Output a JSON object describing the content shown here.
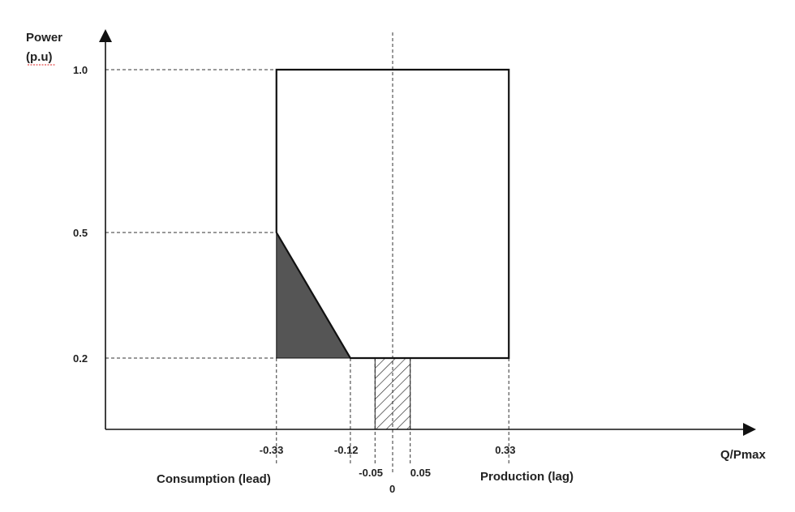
{
  "y_axis": {
    "title_line1": "Power",
    "title_line2": "(p.u)",
    "ticks": [
      {
        "value": 1.0,
        "label": "1.0"
      },
      {
        "value": 0.5,
        "label": "0.5"
      },
      {
        "value": 0.2,
        "label": "0.2"
      }
    ]
  },
  "x_axis": {
    "title": "Q/Pmax",
    "ticks": [
      {
        "value": -0.33,
        "label": "-0.33"
      },
      {
        "value": -0.12,
        "label": "-0.12"
      },
      {
        "value": -0.05,
        "label": "-0.05"
      },
      {
        "value": 0,
        "label": "0"
      },
      {
        "value": 0.05,
        "label": "0.05"
      },
      {
        "value": 0.33,
        "label": "0.33"
      }
    ]
  },
  "regions": {
    "consumption_label": "Consumption  (lead)",
    "production_label": "Production  (lag)"
  },
  "operating_area": {
    "q_min": -0.33,
    "q_max": 0.33,
    "p_min": 0.2,
    "p_max": 1.0,
    "corner_cut": {
      "p_at_min_q": 0.5,
      "q_at_min_p": -0.12
    }
  },
  "hatched_band": {
    "q_min": -0.05,
    "q_max": 0.05,
    "p_min": 0.0,
    "p_max": 0.2
  },
  "colors": {
    "line": "#111111",
    "grid": "#333333",
    "filled_triangle": "#555555"
  }
}
